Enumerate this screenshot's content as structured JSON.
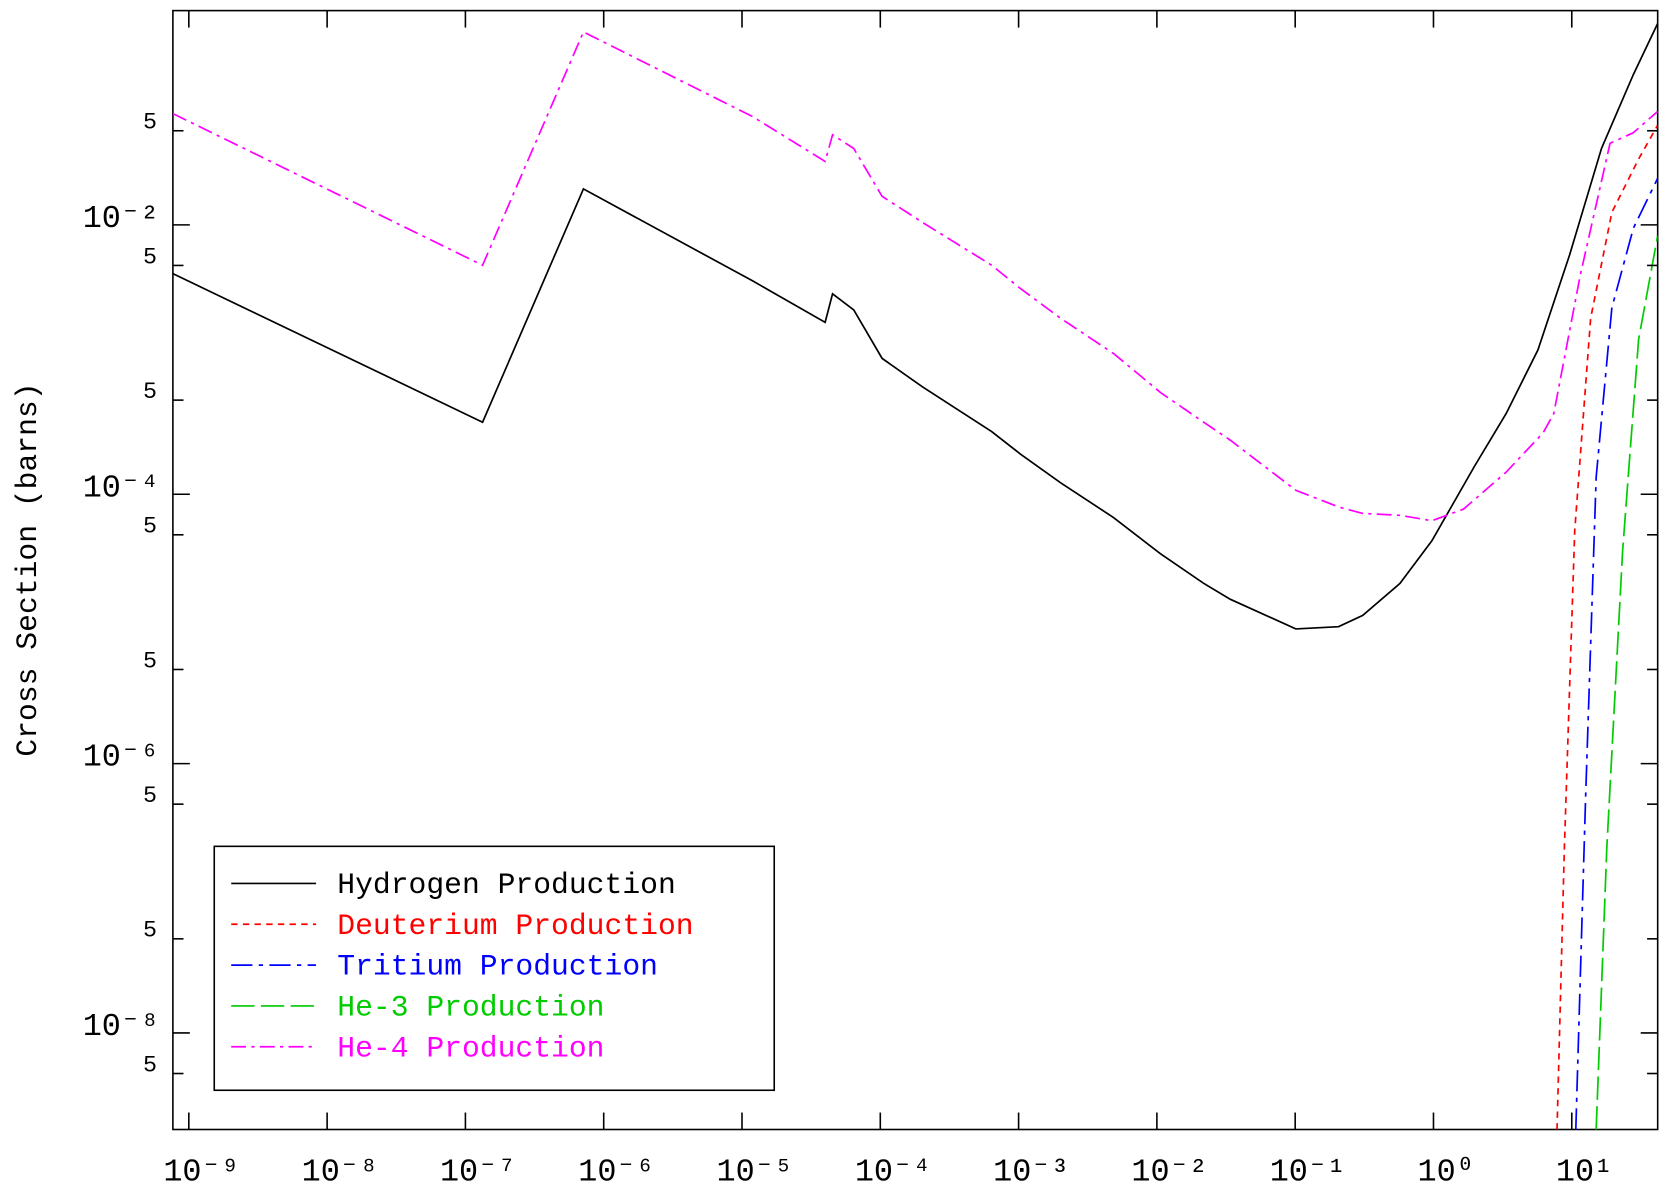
{
  "chart_data": {
    "type": "line",
    "ylabel": "Cross Section (barns)",
    "xscale": "log",
    "yscale": "log",
    "xlim": [
      7.67e-10,
      41.8
    ],
    "ylim": [
      1.92e-09,
      0.39
    ],
    "xticks": [
      {
        "value": 1e-09,
        "label": "10⁻⁹"
      },
      {
        "value": 1e-08,
        "label": "10⁻⁸"
      },
      {
        "value": 1e-07,
        "label": "10⁻⁷"
      },
      {
        "value": 1e-06,
        "label": "10⁻⁶"
      },
      {
        "value": 1e-05,
        "label": "10⁻⁵"
      },
      {
        "value": 0.0001,
        "label": "10⁻⁴"
      },
      {
        "value": 0.001,
        "label": "10⁻³"
      },
      {
        "value": 0.01,
        "label": "10⁻²"
      },
      {
        "value": 0.1,
        "label": "10⁻¹"
      },
      {
        "value": 1,
        "label": "10⁰"
      },
      {
        "value": 10,
        "label": "10¹"
      }
    ],
    "yticks": [
      {
        "value": 0.05,
        "label": "5"
      },
      {
        "value": 0.01,
        "label": "10⁻²"
      },
      {
        "value": 0.005,
        "label": "5"
      },
      {
        "value": 0.0005,
        "label": "5"
      },
      {
        "value": 0.0001,
        "label": "10⁻⁴"
      },
      {
        "value": 5e-05,
        "label": "5"
      },
      {
        "value": 5e-06,
        "label": "5"
      },
      {
        "value": 1e-06,
        "label": "10⁻⁶"
      },
      {
        "value": 5e-07,
        "label": "5"
      },
      {
        "value": 5e-08,
        "label": "5"
      },
      {
        "value": 1e-08,
        "label": "10⁻⁸"
      },
      {
        "value": 5e-09,
        "label": "5"
      }
    ],
    "legend": "lower left",
    "series": [
      {
        "name": "Hydrogen Production",
        "color": "#000000",
        "dash": "none",
        "x": [
          7.67e-10,
          1.33e-07,
          7.13e-07,
          1.2e-05,
          3.99e-05,
          4.52e-05,
          6.43e-05,
          0.000103,
          0.000203,
          0.000638,
          0.00103,
          0.00201,
          0.00486,
          0.0106,
          0.0218,
          0.034,
          0.101,
          0.206,
          0.308,
          0.573,
          0.973,
          1.97,
          3.35,
          5.69,
          9.66,
          16.4,
          27.9,
          41.8
        ],
        "values": [
          0.00435,
          0.000343,
          0.0185,
          0.00383,
          0.00189,
          0.00308,
          0.00234,
          0.00102,
          0.000624,
          0.000292,
          0.000199,
          0.000122,
          6.71e-05,
          3.62e-05,
          2.18e-05,
          1.66e-05,
          1e-05,
          1.04e-05,
          1.26e-05,
          2.18e-05,
          4.51e-05,
          0.00016,
          0.000397,
          0.00118,
          0.006,
          0.0369,
          0.131,
          0.313
        ]
      },
      {
        "name": "Deuterium Production",
        "color": "#ff0000",
        "dash": "6,5",
        "x": [
          7.82,
          8.83,
          10.5,
          13.7,
          19.5,
          30.4,
          41.8
        ],
        "values": [
          1.92e-09,
          2.34e-07,
          5.4e-05,
          0.00203,
          0.0124,
          0.0308,
          0.055
        ]
      },
      {
        "name": "Tritium Production",
        "color": "#0000ff",
        "dash": "20,6,4,6",
        "x": [
          10.7,
          12.6,
          15.0,
          19.5,
          27.9,
          41.8
        ],
        "values": [
          1.92e-09,
          5.8e-07,
          0.000134,
          0.00243,
          0.00946,
          0.0222
        ]
      },
      {
        "name": "He-3 Production",
        "color": "#00cc00",
        "dash": "22,6",
        "x": [
          15.0,
          17.9,
          23.3,
          30.4,
          41.8
        ],
        "values": [
          1.92e-09,
          2.34e-07,
          3.76e-05,
          0.00141,
          0.00834
        ]
      },
      {
        "name": "He-4 Production",
        "color": "#ff00ff",
        "dash": "14,5,3,5",
        "x": [
          7.67e-10,
          1.33e-07,
          7.13e-07,
          1.2e-05,
          3.99e-05,
          4.52e-05,
          6.43e-05,
          0.000103,
          0.000203,
          0.000638,
          0.00103,
          0.00201,
          0.00486,
          0.0106,
          0.0218,
          0.034,
          0.101,
          0.206,
          0.308,
          0.573,
          0.973,
          1.65,
          3.35,
          6.21,
          7.41,
          11.5,
          18.9,
          21.4,
          27.9,
          41.8
        ],
        "values": [
          0.0671,
          0.00502,
          0.271,
          0.0635,
          0.0296,
          0.0467,
          0.0369,
          0.0163,
          0.0104,
          0.00502,
          0.00337,
          0.00203,
          0.00111,
          0.00057,
          0.000343,
          0.000252,
          0.000107,
          8.05e-05,
          7.21e-05,
          6.97e-05,
          6.36e-05,
          7.76e-05,
          0.000146,
          0.000286,
          0.000397,
          0.00419,
          0.0404,
          0.0427,
          0.0484,
          0.0697
        ]
      }
    ]
  }
}
